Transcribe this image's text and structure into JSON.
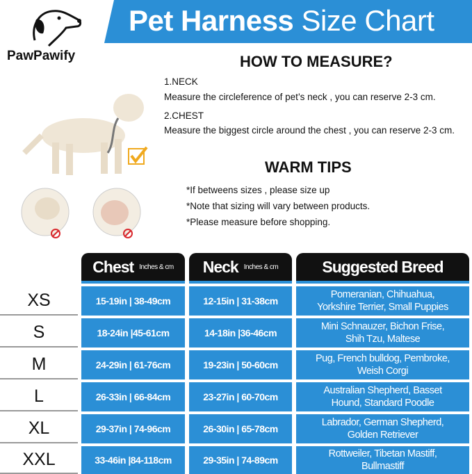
{
  "brand": {
    "name": "PawPawify"
  },
  "title": {
    "bold": "Pet Harness",
    "regular": " Size Chart"
  },
  "how_to": {
    "heading": "HOW TO MEASURE?",
    "neck_label": "1.NECK",
    "neck_text": "Measure the circleference of pet’s neck , you can reserve 2-3 cm.",
    "chest_label": "2.CHEST",
    "chest_text": "Measure the biggest circle around the chest , you can reserve 2-3 cm."
  },
  "tips": {
    "heading": "WARM TIPS",
    "items": [
      "*If betweens sizes , please size up",
      "*Note that sizing will vary between products.",
      "*Please measure before shopping."
    ]
  },
  "table": {
    "headers": {
      "chest": "Chest",
      "chest_unit": "Inches & cm",
      "neck": "Neck",
      "neck_unit": "Inches & cm",
      "breed": "Suggested Breed"
    },
    "rows": [
      {
        "size": "XS",
        "chest": "15-19in | 38-49cm",
        "neck": "12-15in | 31-38cm",
        "breed": "Pomeranian, Chihuahua, Yorkshire Terrier, Small Puppies"
      },
      {
        "size": "S",
        "chest": "18-24in |45-61cm",
        "neck": "14-18in |36-46cm",
        "breed": "Mini Schnauzer, Bichon Frise, Shih Tzu, Maltese"
      },
      {
        "size": "M",
        "chest": "24-29in | 61-76cm",
        "neck": "19-23in | 50-60cm",
        "breed": "Pug, French bulldog, Pembroke, Weish Corgi"
      },
      {
        "size": "L",
        "chest": "26-33in | 66-84cm",
        "neck": "23-27in | 60-70cm",
        "breed": "Australian Shepherd, Basset Hound, Standard Poodle"
      },
      {
        "size": "XL",
        "chest": "29-37in | 74-96cm",
        "neck": "26-30in | 65-78cm",
        "breed": "Labrador, German Shepherd, Golden Retriever"
      },
      {
        "size": "XXL",
        "chest": "33-46in |84-118cm",
        "neck": "29-35in | 74-89cm",
        "breed": "Rottweiler, Tibetan Mastiff, Bullmastiff"
      }
    ]
  },
  "colors": {
    "accent": "#2b8fd6",
    "header": "#111111",
    "check": "#f0a91e",
    "prohibit": "#d9262b"
  }
}
